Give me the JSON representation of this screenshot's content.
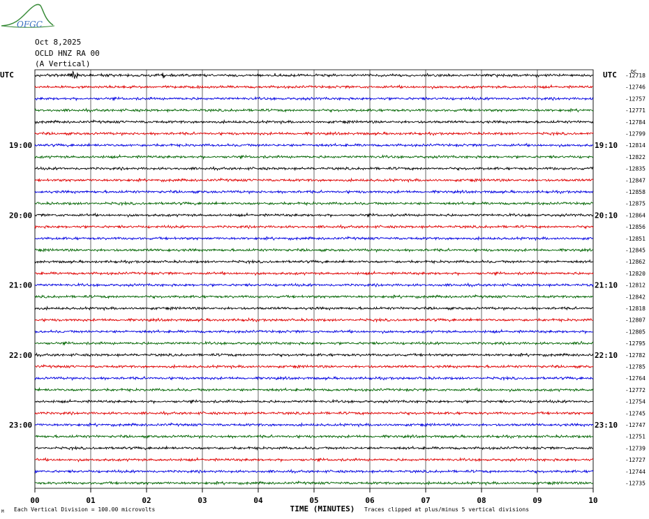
{
  "header": {
    "date": "Oct 8,2025",
    "station": "OCLD HNZ RA 00",
    "component": "(A Vertical)",
    "logo_text": "OFGC"
  },
  "footer": {
    "scale_note": "Each Vertical Division =  100.00 microvolts",
    "clip_note": "Traces clipped at plus/minus 5 vertical divisions",
    "corner_mark": "M"
  },
  "colors": {
    "trace_cycle": [
      "#000000",
      "#e00000",
      "#0000e0",
      "#006400"
    ],
    "grid": "#000000",
    "background": "#ffffff"
  },
  "chart_data": {
    "type": "line",
    "title": "",
    "xlabel": "TIME (MINUTES)",
    "x_range": [
      0,
      10
    ],
    "x_ticks": [
      "00",
      "01",
      "02",
      "03",
      "04",
      "05",
      "06",
      "07",
      "08",
      "09",
      "10"
    ],
    "left_axis_label": "UTC",
    "right_axis_label": "UTC",
    "dc_label": "DC",
    "left_hour_labels": [
      {
        "row": 6,
        "label": "19:00"
      },
      {
        "row": 12,
        "label": "20:00"
      },
      {
        "row": 18,
        "label": "21:00"
      },
      {
        "row": 24,
        "label": "22:00"
      },
      {
        "row": 30,
        "label": "23:00"
      }
    ],
    "right_hour_labels": [
      {
        "row": 6,
        "label": "19:10"
      },
      {
        "row": 12,
        "label": "20:10"
      },
      {
        "row": 18,
        "label": "21:10"
      },
      {
        "row": 24,
        "label": "22:10"
      },
      {
        "row": 30,
        "label": "23:10"
      }
    ],
    "dc_offsets": [
      "-12718",
      "-12746",
      "-12757",
      "-12771",
      "-12784",
      "-12799",
      "-12814",
      "-12822",
      "-12835",
      "-12847",
      "-12858",
      "-12875",
      "-12864",
      "-12856",
      "-12851",
      "-12845",
      "-12862",
      "-12820",
      "-12812",
      "-12842",
      "-12818",
      "-12807",
      "-12805",
      "-12795",
      "-12782",
      "-12785",
      "-12764",
      "-12772",
      "-12754",
      "-12745",
      "-12747",
      "-12751",
      "-12739",
      "-12727",
      "-12744",
      "-12735"
    ],
    "trace_count": 36,
    "minutes_per_trace": 10,
    "amplitude_units": "vertical divisions",
    "clip_limit": 5,
    "events": [
      {
        "trace": 0,
        "minute": 0.7,
        "amplitude": 5.0
      },
      {
        "trace": 0,
        "minute": 2.3,
        "amplitude": 2.2
      },
      {
        "trace": 0,
        "minute": 4.3,
        "amplitude": 1.8
      },
      {
        "trace": 2,
        "minute": 4.8,
        "amplitude": 1.6
      },
      {
        "trace": 8,
        "minute": 9.3,
        "amplitude": 1.6
      },
      {
        "trace": 15,
        "minute": 2.4,
        "amplitude": 1.5
      },
      {
        "trace": 21,
        "minute": 3.8,
        "amplitude": 1.8
      },
      {
        "trace": 23,
        "minute": 9.8,
        "amplitude": 2.2
      },
      {
        "trace": 25,
        "minute": 3.8,
        "amplitude": 1.6
      }
    ]
  }
}
